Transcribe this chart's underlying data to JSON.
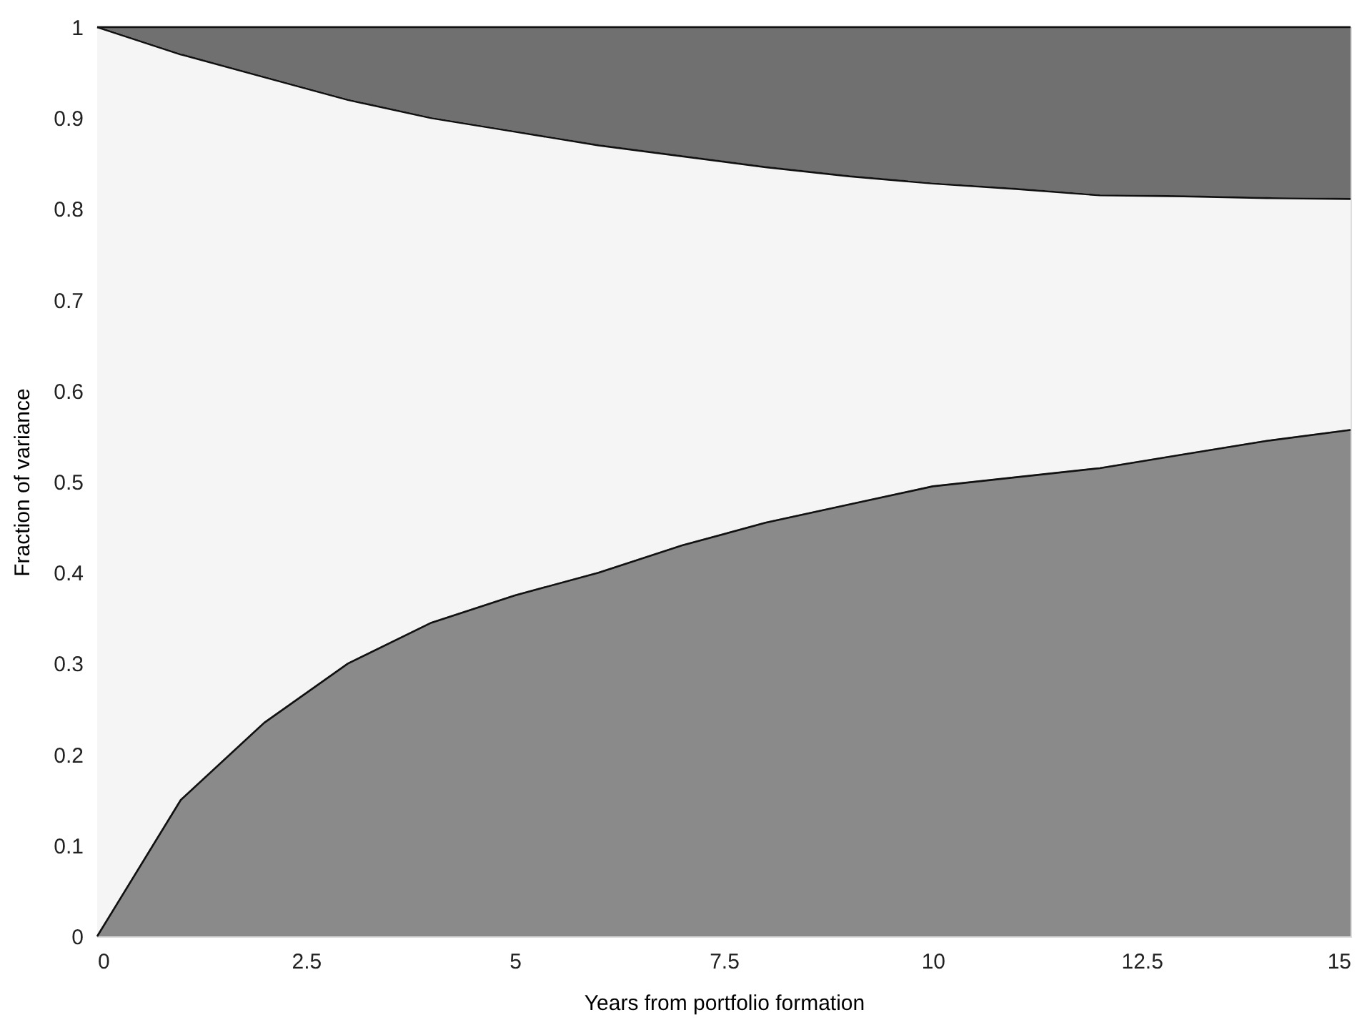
{
  "chart_data": {
    "type": "area",
    "stacked": true,
    "xlabel": "Years from portfolio formation",
    "ylabel": "Fraction of variance",
    "x": [
      0,
      1,
      2,
      3,
      4,
      5,
      6,
      7,
      8,
      9,
      10,
      11,
      12,
      13,
      14,
      15
    ],
    "series": [
      {
        "color": "#8a8a8a",
        "values": [
          0,
          0.15,
          0.235,
          0.3,
          0.345,
          0.375,
          0.4,
          0.43,
          0.455,
          0.475,
          0.495,
          0.505,
          0.515,
          0.53,
          0.545,
          0.557
        ]
      },
      {
        "color": "#f5f5f5",
        "values": [
          1.0,
          0.82,
          0.71,
          0.62,
          0.555,
          0.51,
          0.47,
          0.428,
          0.391,
          0.361,
          0.333,
          0.317,
          0.3,
          0.284,
          0.267,
          0.254
        ]
      },
      {
        "color": "#707070",
        "values": [
          0,
          0.03,
          0.055,
          0.08,
          0.1,
          0.115,
          0.13,
          0.142,
          0.154,
          0.164,
          0.172,
          0.178,
          0.185,
          0.186,
          0.188,
          0.189
        ]
      }
    ],
    "xlim": [
      0,
      15
    ],
    "xticks": [
      0,
      2.5,
      5,
      7.5,
      10,
      12.5,
      15
    ],
    "ylim": [
      0,
      1
    ],
    "yticks": [
      0,
      0.1,
      0.2,
      0.3,
      0.4,
      0.5,
      0.6,
      0.7,
      0.8,
      0.9,
      1
    ],
    "legend": false
  }
}
